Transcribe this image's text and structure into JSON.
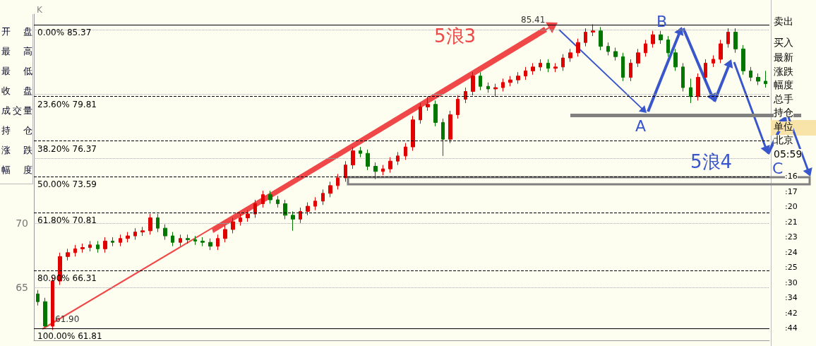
{
  "chart_data": {
    "type": "candlestick",
    "categories": [
      null,
      null,
      null,
      null,
      null,
      null,
      null,
      null,
      null,
      null,
      null,
      null,
      null,
      null,
      null,
      null,
      null,
      null,
      null,
      null,
      null,
      null,
      null,
      null,
      null,
      null,
      null,
      null,
      null,
      null,
      null,
      null,
      null,
      null,
      null,
      null,
      null,
      null,
      null,
      null,
      null,
      null,
      null,
      null,
      null,
      null,
      null,
      null,
      null,
      null,
      null,
      null,
      null,
      null,
      null,
      null,
      null,
      null,
      null,
      null,
      null,
      null,
      null,
      null,
      null,
      null,
      null,
      null,
      null,
      null,
      null,
      null,
      null,
      null,
      null,
      null,
      null,
      null,
      null,
      null,
      null,
      null,
      null,
      null,
      null,
      null,
      null,
      null,
      null,
      null,
      null,
      null,
      null,
      null,
      null,
      null,
      null,
      null
    ],
    "ohlc": [
      [
        64.5,
        64.8,
        63.6,
        63.9
      ],
      [
        63.9,
        64.2,
        61.9,
        62.0
      ],
      [
        62.0,
        65.8,
        61.7,
        65.5
      ],
      [
        65.5,
        67.7,
        65.2,
        67.4
      ],
      [
        67.4,
        68.0,
        67.1,
        67.7
      ],
      [
        67.7,
        68.3,
        67.4,
        68.0
      ],
      [
        68.0,
        68.4,
        67.7,
        68.1
      ],
      [
        68.1,
        68.6,
        67.8,
        68.3
      ],
      [
        68.3,
        68.6,
        67.7,
        68.0
      ],
      [
        68.0,
        68.9,
        67.7,
        68.6
      ],
      [
        68.6,
        68.9,
        68.2,
        68.5
      ],
      [
        68.5,
        69.1,
        68.2,
        68.8
      ],
      [
        68.8,
        69.3,
        68.5,
        69.0
      ],
      [
        69.0,
        69.6,
        68.7,
        69.3
      ],
      [
        69.3,
        69.7,
        69.0,
        69.4
      ],
      [
        69.4,
        70.7,
        69.1,
        70.4
      ],
      [
        70.4,
        70.7,
        69.3,
        69.6
      ],
      [
        69.6,
        69.9,
        68.7,
        69.0
      ],
      [
        69.0,
        69.3,
        68.2,
        68.5
      ],
      [
        68.5,
        69.1,
        68.2,
        68.8
      ],
      [
        68.8,
        69.1,
        68.4,
        68.7
      ],
      [
        68.7,
        69.0,
        68.3,
        68.6
      ],
      [
        68.6,
        68.9,
        68.2,
        68.5
      ],
      [
        68.5,
        68.8,
        67.9,
        68.2
      ],
      [
        68.2,
        69.1,
        67.9,
        68.8
      ],
      [
        68.8,
        69.8,
        68.5,
        69.5
      ],
      [
        69.5,
        70.4,
        69.2,
        70.1
      ],
      [
        70.1,
        70.7,
        69.8,
        70.4
      ],
      [
        70.4,
        71.0,
        70.1,
        70.7
      ],
      [
        70.7,
        71.8,
        70.4,
        71.5
      ],
      [
        71.5,
        72.5,
        71.2,
        72.2
      ],
      [
        72.2,
        72.5,
        71.5,
        71.8
      ],
      [
        71.8,
        72.1,
        71.2,
        71.5
      ],
      [
        71.5,
        71.8,
        70.3,
        70.6
      ],
      [
        70.6,
        70.9,
        69.4,
        70.3
      ],
      [
        70.3,
        71.2,
        70.0,
        70.9
      ],
      [
        70.9,
        71.6,
        70.6,
        71.3
      ],
      [
        71.3,
        72.0,
        71.0,
        71.7
      ],
      [
        71.7,
        72.6,
        71.4,
        72.3
      ],
      [
        72.3,
        73.2,
        72.0,
        72.9
      ],
      [
        72.9,
        73.8,
        72.6,
        73.5
      ],
      [
        73.5,
        74.8,
        73.2,
        74.5
      ],
      [
        74.5,
        75.9,
        74.2,
        75.6
      ],
      [
        75.6,
        75.9,
        75.1,
        75.4
      ],
      [
        75.4,
        75.7,
        74.1,
        74.4
      ],
      [
        74.4,
        74.7,
        73.4,
        74.0
      ],
      [
        74.0,
        74.5,
        73.7,
        74.2
      ],
      [
        74.2,
        75.1,
        73.9,
        74.8
      ],
      [
        74.8,
        75.5,
        74.5,
        75.2
      ],
      [
        75.2,
        76.2,
        74.9,
        75.9
      ],
      [
        75.9,
        78.3,
        75.6,
        78.0
      ],
      [
        78.0,
        79.3,
        77.7,
        79.0
      ],
      [
        79.0,
        79.8,
        78.7,
        79.2
      ],
      [
        79.2,
        79.5,
        77.5,
        77.8
      ],
      [
        77.8,
        78.1,
        75.2,
        76.5
      ],
      [
        76.5,
        78.7,
        76.2,
        78.4
      ],
      [
        78.4,
        79.9,
        78.1,
        79.6
      ],
      [
        79.6,
        80.5,
        79.3,
        80.2
      ],
      [
        80.2,
        81.7,
        79.9,
        81.4
      ],
      [
        81.4,
        81.7,
        80.3,
        80.6
      ],
      [
        80.6,
        80.9,
        80.1,
        80.4
      ],
      [
        80.4,
        80.8,
        79.8,
        80.5
      ],
      [
        80.5,
        81.2,
        80.2,
        80.9
      ],
      [
        80.9,
        81.4,
        80.6,
        81.1
      ],
      [
        81.1,
        81.7,
        80.8,
        81.4
      ],
      [
        81.4,
        82.1,
        81.1,
        81.8
      ],
      [
        81.8,
        82.4,
        81.5,
        82.1
      ],
      [
        82.1,
        82.7,
        81.8,
        82.4
      ],
      [
        82.4,
        82.7,
        81.7,
        82.0
      ],
      [
        82.0,
        82.4,
        81.7,
        82.1
      ],
      [
        82.1,
        83.1,
        81.8,
        82.8
      ],
      [
        82.8,
        83.5,
        82.5,
        83.2
      ],
      [
        83.2,
        84.3,
        82.9,
        84.0
      ],
      [
        84.0,
        85.1,
        83.7,
        84.8
      ],
      [
        84.8,
        85.41,
        84.5,
        84.9
      ],
      [
        84.9,
        85.2,
        83.4,
        83.7
      ],
      [
        83.7,
        84.0,
        83.0,
        83.3
      ],
      [
        83.3,
        83.6,
        82.6,
        82.9
      ],
      [
        82.9,
        83.2,
        81.0,
        81.3
      ],
      [
        81.3,
        82.7,
        81.0,
        82.4
      ],
      [
        82.4,
        83.5,
        82.1,
        83.2
      ],
      [
        83.2,
        84.2,
        82.9,
        83.9
      ],
      [
        83.9,
        84.9,
        83.6,
        84.6
      ],
      [
        84.6,
        84.9,
        83.9,
        84.2
      ],
      [
        84.2,
        84.5,
        82.9,
        83.2
      ],
      [
        83.2,
        83.5,
        81.8,
        82.1
      ],
      [
        82.1,
        82.4,
        80.2,
        80.5
      ],
      [
        80.5,
        81.2,
        79.3,
        79.8
      ],
      [
        79.8,
        81.6,
        79.5,
        81.3
      ],
      [
        81.3,
        82.7,
        81.0,
        82.4
      ],
      [
        82.4,
        83.0,
        82.1,
        82.7
      ],
      [
        82.7,
        84.2,
        82.4,
        83.9
      ],
      [
        83.9,
        85.1,
        83.6,
        84.8
      ],
      [
        84.8,
        85.1,
        83.2,
        83.5
      ],
      [
        83.5,
        83.8,
        81.5,
        81.8
      ],
      [
        81.8,
        82.1,
        81.0,
        81.3
      ],
      [
        81.3,
        81.6,
        80.7,
        81.0
      ],
      [
        81.0,
        81.8,
        80.5,
        80.8
      ]
    ],
    "ylim": [
      60.9,
      86.2
    ],
    "yticks": [
      65,
      70,
      {
        "value": 75,
        "label": null
      },
      {
        "value": 80,
        "label": null
      },
      {
        "value": 85,
        "label": null
      }
    ],
    "grid": "y",
    "ref_lines": [
      {
        "axis": "y",
        "value": 85.37,
        "label": "0.00% 85.37",
        "color": "#000000",
        "line_style": "solid"
      },
      {
        "axis": "y",
        "value": 79.81,
        "label": "23.60% 79.81",
        "color": "#000000",
        "line_style": "dashed"
      },
      {
        "axis": "y",
        "value": 76.37,
        "label": "38.20% 76.37",
        "color": "#000000",
        "line_style": "dashed"
      },
      {
        "axis": "y",
        "value": 73.59,
        "label": "50.00% 73.59",
        "color": "#000000",
        "line_style": "dashed"
      },
      {
        "axis": "y",
        "value": 70.81,
        "label": "61.80% 70.81",
        "color": "#000000",
        "line_style": "dashed"
      },
      {
        "axis": "y",
        "value": 66.31,
        "label": "80.90% 66.31",
        "color": "#000000",
        "line_style": "dashed"
      },
      {
        "axis": "y",
        "value": 61.81,
        "label": "100.00% 61.81",
        "color": "#000000",
        "line_style": "solid"
      }
    ],
    "annotations": [
      "K",
      "85.41",
      "61.90",
      "5浪3",
      "5浪4",
      "A",
      "B",
      "C",
      "开 盘",
      "最 高",
      "最 低",
      "收 盘",
      "成交量",
      "持 仓",
      "涨 跌",
      "幅 度",
      "卖出",
      "买入",
      "最新",
      "涨跌",
      "幅度",
      "总手",
      "持仓",
      "单位",
      "北京",
      "05:59",
      ":16",
      ":17",
      ":20",
      ":21",
      ":23",
      ":24",
      ":25",
      ":30",
      ":34",
      ":42",
      ":44"
    ]
  }
}
